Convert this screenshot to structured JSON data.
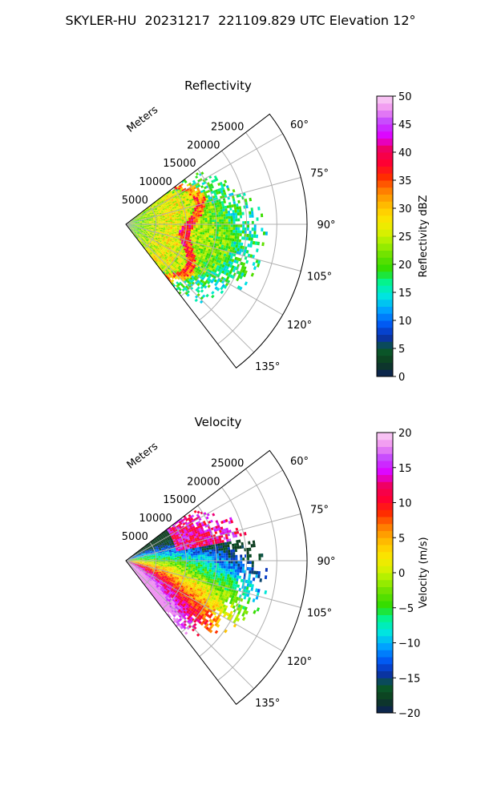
{
  "page": {
    "title": "SKYLER-HU  20231217  221109.829 UTC Elevation 12°"
  },
  "chart_data": [
    {
      "type": "heatmap",
      "projection": "polar-sector",
      "title": "Reflectivity",
      "range_label": "Meters",
      "range_ticks": [
        5000,
        10000,
        15000,
        20000,
        25000
      ],
      "range_tick_labels": [
        "5000",
        "10000",
        "15000",
        "20000",
        "25000"
      ],
      "r_max": 30000,
      "azimuth_ticks": [
        60,
        75,
        90,
        105,
        120,
        135
      ],
      "azimuth_tick_labels": [
        "60°",
        "75°",
        "90°",
        "105°",
        "120°",
        "135°"
      ],
      "azimuth_range": [
        52.5,
        142.5
      ],
      "grid": true,
      "colorbar": {
        "label": "Reflectivity dBZ",
        "min": 0,
        "max": 50,
        "ticks": [
          0,
          5,
          10,
          15,
          20,
          25,
          30,
          35,
          40,
          45,
          50
        ],
        "tick_labels": [
          "0",
          "5",
          "10",
          "15",
          "20",
          "25",
          "30",
          "35",
          "40",
          "45",
          "50"
        ],
        "colors": [
          "#0c1f5a",
          "#0d3b1f",
          "#0a5a2a",
          "#0a2fb0",
          "#005df7",
          "#00a3ff",
          "#00e3e3",
          "#00f59a",
          "#2edc00",
          "#66e000",
          "#a6f000",
          "#e6f000",
          "#ffe000",
          "#ffb400",
          "#ff7a00",
          "#ff2a00",
          "#ff0033",
          "#f0005a",
          "#e000ff",
          "#c040ff",
          "#f090f0",
          "#fbd4f6"
        ]
      }
    },
    {
      "type": "heatmap",
      "projection": "polar-sector",
      "title": "Velocity",
      "range_label": "Meters",
      "range_ticks": [
        5000,
        10000,
        15000,
        20000,
        25000
      ],
      "range_tick_labels": [
        "5000",
        "10000",
        "15000",
        "20000",
        "25000"
      ],
      "r_max": 30000,
      "azimuth_ticks": [
        60,
        75,
        90,
        105,
        120,
        135
      ],
      "azimuth_tick_labels": [
        "60°",
        "75°",
        "90°",
        "105°",
        "120°",
        "135°"
      ],
      "azimuth_range": [
        52.5,
        142.5
      ],
      "grid": true,
      "colorbar": {
        "label": "Velocity (m/s)",
        "min": -20,
        "max": 20,
        "ticks": [
          -20,
          -15,
          -10,
          -5,
          0,
          5,
          10,
          15,
          20
        ],
        "tick_labels": [
          "−20",
          "−15",
          "−10",
          "−5",
          "0",
          "5",
          "10",
          "15",
          "20"
        ],
        "colors": [
          "#0c1f5a",
          "#0d3b1f",
          "#0a5a2a",
          "#0a2fb0",
          "#005df7",
          "#00a3ff",
          "#00e3e3",
          "#00f59a",
          "#2edc00",
          "#66e000",
          "#a6f000",
          "#e6f000",
          "#ffe000",
          "#ffb400",
          "#ff7a00",
          "#ff2a00",
          "#ff0033",
          "#f0005a",
          "#e000ff",
          "#c040ff",
          "#f090f0",
          "#fbd4f6"
        ]
      }
    }
  ]
}
